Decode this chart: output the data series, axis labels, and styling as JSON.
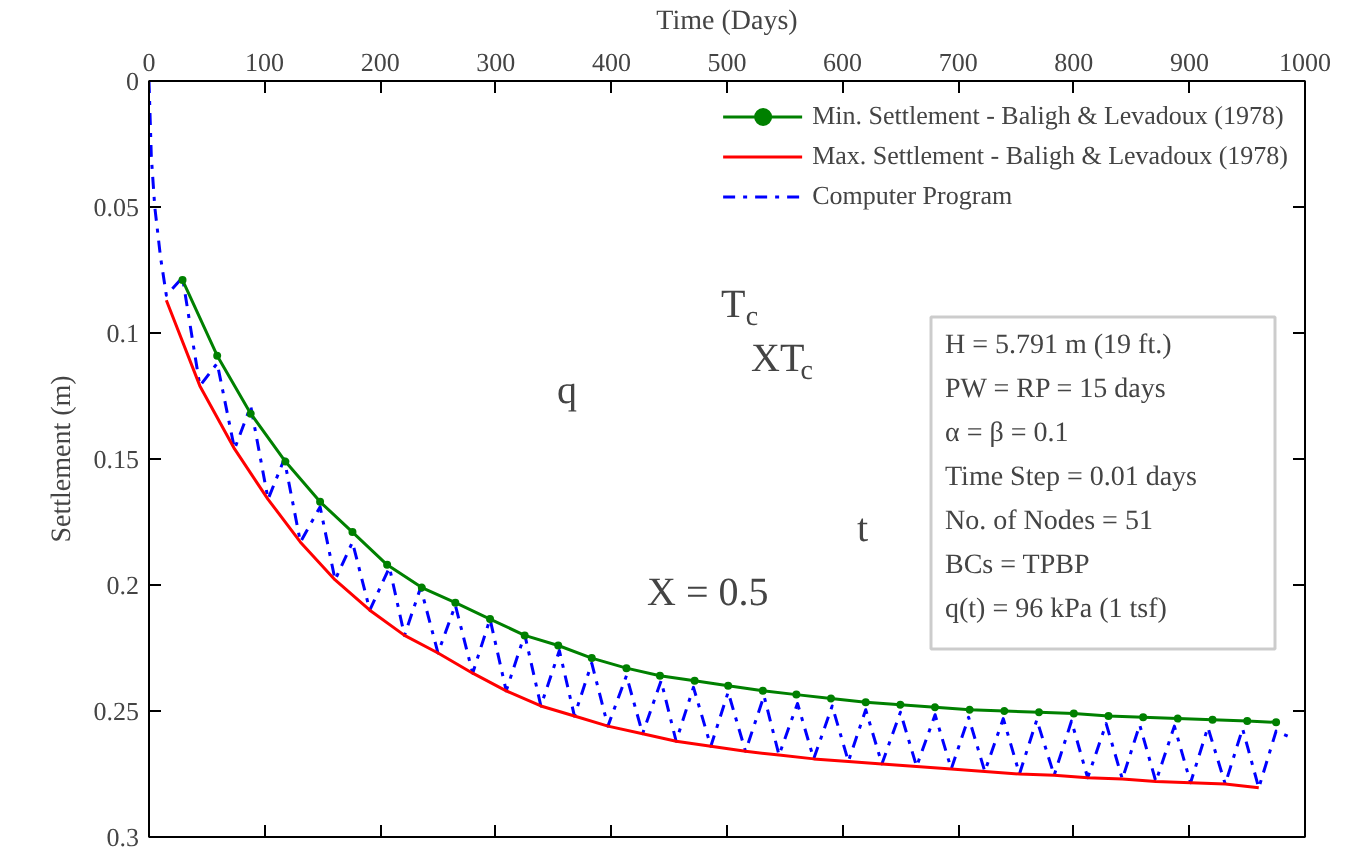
{
  "chart_data": {
    "type": "line",
    "xlabel": "Time (Days)",
    "ylabel": "Settlement (m)",
    "xlim": [
      0,
      1000
    ],
    "xticks": [
      0,
      100,
      200,
      300,
      400,
      500,
      600,
      700,
      800,
      900,
      1000
    ],
    "ylim": [
      0.3,
      0
    ],
    "yticks": [
      0,
      0.05,
      0.1,
      0.15,
      0.2,
      0.25,
      0.3
    ],
    "grid": false,
    "legend": "top right",
    "series": [
      {
        "name": "Min. Settlement - Baligh & Levadoux (1978)",
        "color": "#008000",
        "marker": "circle",
        "line_style": "solid",
        "x": [
          29,
          59,
          88,
          118,
          148,
          176,
          206,
          236,
          265,
          295,
          325,
          354,
          383,
          413,
          442,
          472,
          501,
          531,
          560,
          590,
          620,
          650,
          680,
          710,
          740,
          770,
          800,
          830,
          860,
          890,
          920,
          950,
          975
        ],
        "values": [
          0.079,
          0.109,
          0.132,
          0.151,
          0.167,
          0.179,
          0.192,
          0.201,
          0.207,
          0.2135,
          0.22,
          0.224,
          0.229,
          0.233,
          0.236,
          0.238,
          0.24,
          0.242,
          0.2435,
          0.245,
          0.2465,
          0.2475,
          0.2485,
          0.2495,
          0.25,
          0.2505,
          0.251,
          0.252,
          0.2525,
          0.253,
          0.2535,
          0.254,
          0.2545
        ]
      },
      {
        "name": "Max. Settlement - Baligh & Levadoux (1978)",
        "color": "#ff0000",
        "marker": "none",
        "line_style": "solid",
        "x": [
          15,
          44,
          74,
          103,
          131,
          161,
          191,
          221,
          250,
          280,
          309,
          339,
          368,
          397,
          427,
          456,
          486,
          516,
          545,
          575,
          605,
          634,
          664,
          694,
          723,
          753,
          783,
          812,
          842,
          871,
          901,
          931,
          960
        ],
        "values": [
          0.087,
          0.121,
          0.146,
          0.166,
          0.183,
          0.198,
          0.21,
          0.22,
          0.227,
          0.235,
          0.242,
          0.248,
          0.252,
          0.256,
          0.259,
          0.262,
          0.264,
          0.266,
          0.2675,
          0.269,
          0.27,
          0.271,
          0.272,
          0.273,
          0.274,
          0.275,
          0.2755,
          0.2765,
          0.277,
          0.278,
          0.2785,
          0.279,
          0.2805
        ]
      },
      {
        "name": "Computer Program",
        "color": "#0000ff",
        "marker": "none",
        "line_style": "dashdot",
        "x": [
          0,
          2,
          5,
          10,
          15,
          29,
          44,
          59,
          74,
          88,
          103,
          117,
          131,
          148,
          161,
          176,
          191,
          208,
          221,
          235,
          250,
          265,
          280,
          295,
          309,
          325,
          339,
          355,
          368,
          383,
          397,
          413,
          427,
          443,
          456,
          471,
          486,
          501,
          516,
          532,
          545,
          561,
          575,
          591,
          605,
          620,
          634,
          650,
          664,
          680,
          694,
          709,
          723,
          739,
          753,
          768,
          783,
          798,
          812,
          828,
          842,
          857,
          871,
          887,
          901,
          916,
          931,
          946,
          960,
          975,
          985
        ],
        "values": [
          0,
          0.03,
          0.05,
          0.07,
          0.085,
          0.078,
          0.121,
          0.112,
          0.146,
          0.129,
          0.166,
          0.15,
          0.183,
          0.169,
          0.198,
          0.183,
          0.21,
          0.193,
          0.22,
          0.201,
          0.227,
          0.208,
          0.235,
          0.2135,
          0.242,
          0.2196,
          0.248,
          0.226,
          0.252,
          0.231,
          0.256,
          0.236,
          0.259,
          0.238,
          0.262,
          0.2406,
          0.264,
          0.2425,
          0.266,
          0.244,
          0.2675,
          0.247,
          0.269,
          0.248,
          0.27,
          0.2495,
          0.271,
          0.2505,
          0.272,
          0.2515,
          0.273,
          0.2525,
          0.274,
          0.253,
          0.275,
          0.2535,
          0.2755,
          0.254,
          0.2765,
          0.255,
          0.277,
          0.2555,
          0.278,
          0.256,
          0.2785,
          0.2565,
          0.279,
          0.257,
          0.2805,
          0.258,
          0.26
        ]
      }
    ],
    "annotations": [
      "T$_{c}$",
      "XT$_{c}$",
      "q",
      "t",
      "X = 0.5",
      "H = 5.791 m (19 ft.)",
      "PW = RP = 15 days",
      "α = β = 0.1",
      "Time Step = 0.01 days",
      "No. of Nodes = 51",
      "BCs = TPBP",
      "q(t) = 96 kPa (1 tsf)"
    ]
  }
}
